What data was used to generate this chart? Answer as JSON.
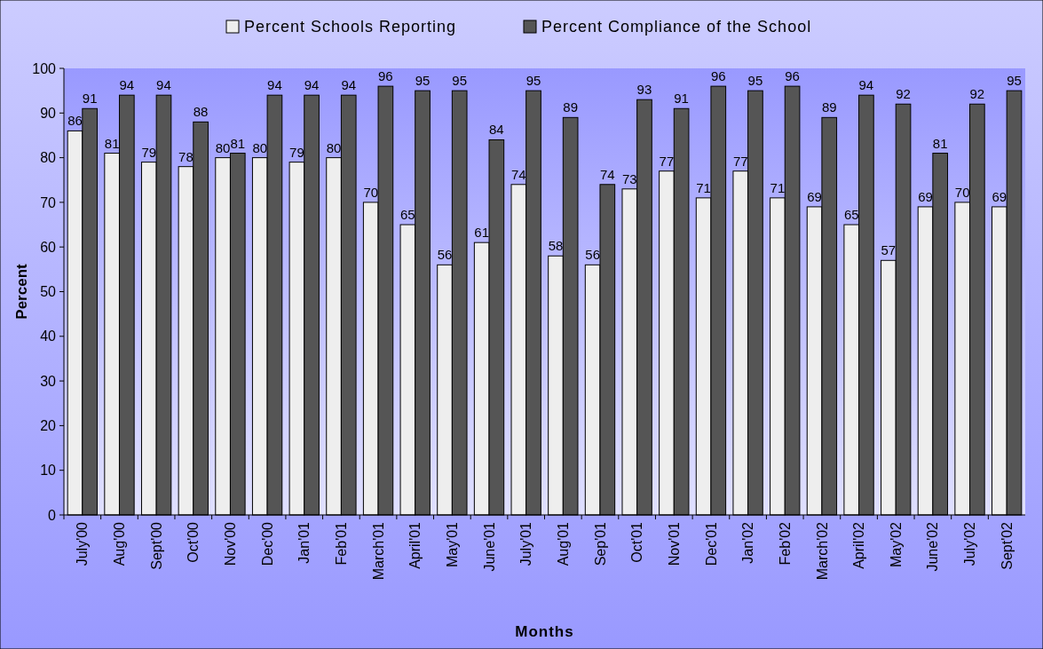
{
  "chart_data": {
    "type": "bar",
    "xlabel": "Months",
    "ylabel": "Percent",
    "categories": [
      "July'00",
      "Aug'00",
      "Sept'00",
      "Oct'00",
      "Nov'00",
      "Dec'00",
      "Jan'01",
      "Feb'01",
      "March'01",
      "April'01",
      "May'01",
      "June'01",
      "July'01",
      "Aug'01",
      "Sep'01",
      "Oct'01",
      "Nov'01",
      "Dec'01",
      "Jan'02",
      "Feb'02",
      "March'02",
      "April'02",
      "May'02",
      "June'02",
      "July'02",
      "Sept'02"
    ],
    "series": [
      {
        "name": "Percent Schools Reporting",
        "color": "#eeeeee",
        "values": [
          86,
          81,
          79,
          78,
          80,
          80,
          79,
          80,
          70,
          65,
          56,
          61,
          74,
          58,
          56,
          73,
          77,
          71,
          77,
          71,
          69,
          65,
          57,
          69,
          70,
          69
        ]
      },
      {
        "name": "Percent Compliance of the School",
        "color": "#555555",
        "values": [
          91,
          94,
          94,
          88,
          81,
          94,
          94,
          94,
          96,
          95,
          95,
          84,
          95,
          89,
          74,
          93,
          91,
          96,
          95,
          96,
          89,
          94,
          92,
          81,
          92,
          95
        ]
      }
    ],
    "ylim": [
      0,
      100
    ],
    "yticks": [
      0,
      10,
      20,
      30,
      40,
      50,
      60,
      70,
      80,
      90,
      100
    ],
    "data_labels": true,
    "legend": "top",
    "grid": false
  }
}
